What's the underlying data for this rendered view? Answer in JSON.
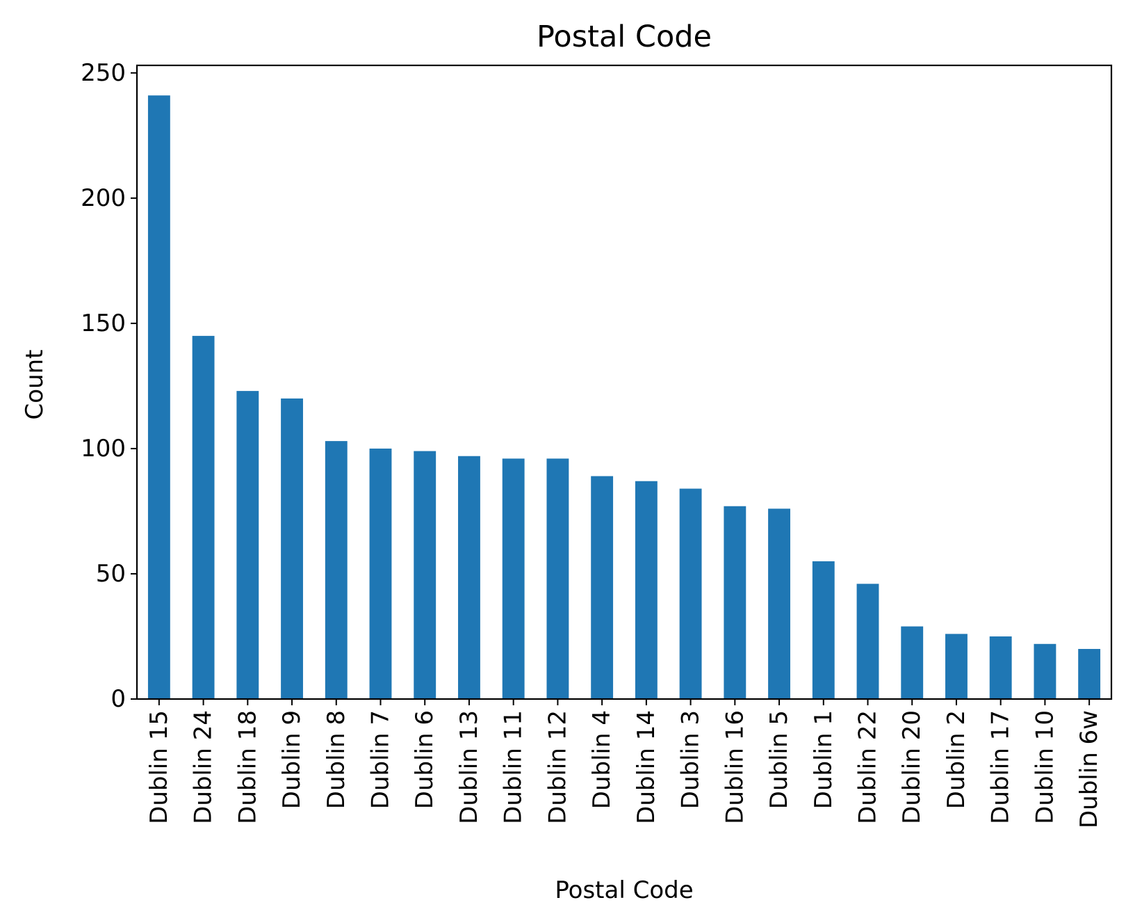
{
  "chart_data": {
    "type": "bar",
    "title": "Postal Code",
    "xlabel": "Postal Code",
    "ylabel": "Count",
    "categories": [
      "Dublin 15",
      "Dublin 24",
      "Dublin 18",
      "Dublin 9",
      "Dublin 8",
      "Dublin 7",
      "Dublin 6",
      "Dublin 13",
      "Dublin 11",
      "Dublin 12",
      "Dublin 4",
      "Dublin 14",
      "Dublin 3",
      "Dublin 16",
      "Dublin 5",
      "Dublin 1",
      "Dublin 22",
      "Dublin 20",
      "Dublin 2",
      "Dublin 17",
      "Dublin 10",
      "Dublin 6w"
    ],
    "values": [
      241,
      145,
      123,
      120,
      103,
      100,
      99,
      97,
      96,
      96,
      89,
      87,
      84,
      77,
      76,
      55,
      46,
      29,
      26,
      25,
      22,
      20
    ],
    "ylim": [
      0,
      253
    ],
    "yticks": [
      0,
      50,
      100,
      150,
      200,
      250
    ],
    "grid": false,
    "bar_color": "#1f77b4"
  }
}
